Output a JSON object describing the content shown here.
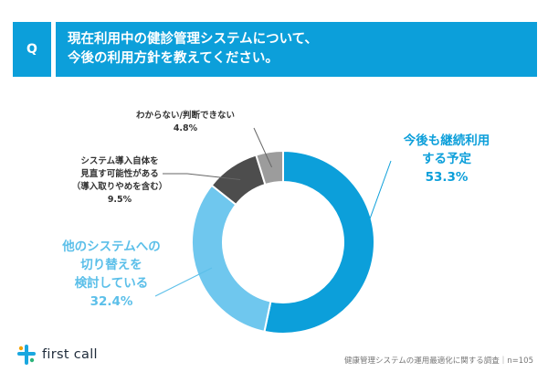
{
  "question": {
    "badge": "Q",
    "line1": "現在利用中の健診管理システムについて、",
    "line2": "今後の利用方針を教えてください。"
  },
  "chart_data": {
    "type": "pie",
    "categories": [
      "今後も継続利用する予定",
      "他のシステムへの切り替えを検討している",
      "システム導入自体を見直す可能性がある（導入取りやめを含む）",
      "わからない/判断できない"
    ],
    "values": [
      53.3,
      32.4,
      9.5,
      4.8
    ],
    "colors": [
      "#0c9fda",
      "#6fc7ee",
      "#4d4d4d",
      "#9c9c9c"
    ],
    "donut": true
  },
  "labels": {
    "continue": {
      "l1": "今後も継続利用",
      "l2": "する予定",
      "pct": "53.3%"
    },
    "switch": {
      "l1": "他のシステムへの",
      "l2": "切り替えを",
      "l3": "検討している",
      "pct": "32.4%"
    },
    "review": {
      "l1": "システム導入自体を",
      "l2": "見直す可能性がある",
      "l3": "（導入取りやめを含む）",
      "pct": "9.5%"
    },
    "unknown": {
      "l1": "わからない/判断できない",
      "pct": "4.8%"
    }
  },
  "footer": {
    "brand": "first call",
    "source": "健康管理システムの運用最適化に関する調査｜n=105"
  }
}
